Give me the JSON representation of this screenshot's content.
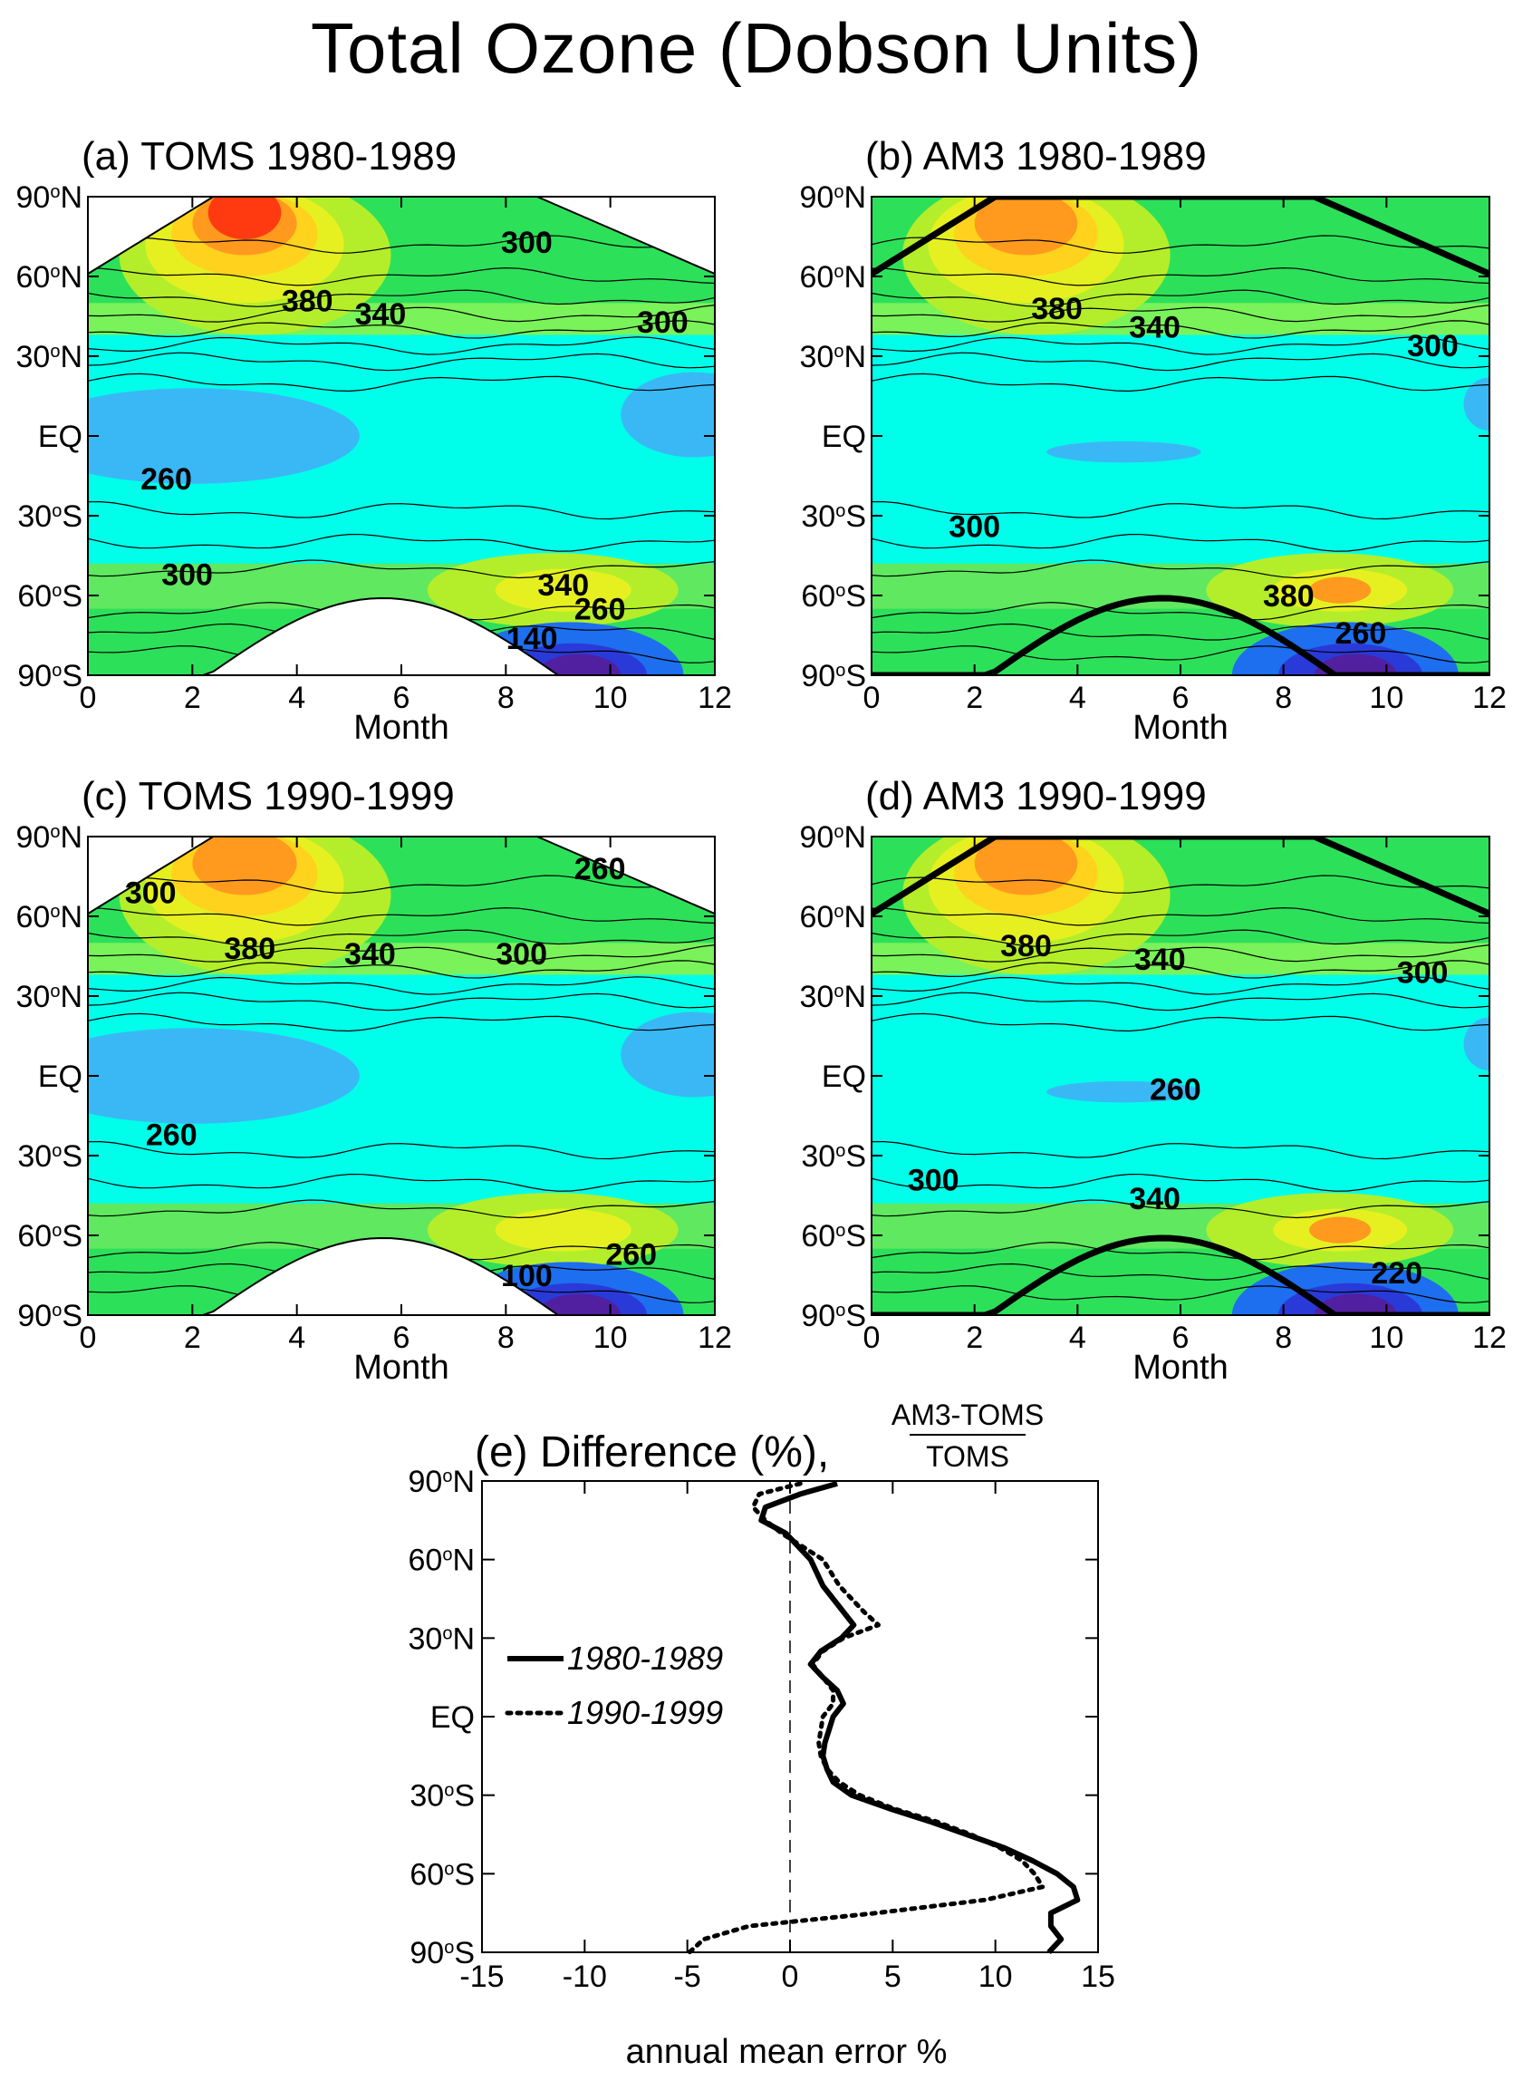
{
  "page": {
    "title": "Total Ozone  (Dobson Units)"
  },
  "chart_data": [
    {
      "type": "heatmap",
      "panel": "(a)",
      "title": "TOMS 1980-1989",
      "xlabel": "Month",
      "x_ticks": [
        "0",
        "2",
        "4",
        "6",
        "8",
        "10",
        "12"
      ],
      "y_ticks": [
        "90°N",
        "60°N",
        "30°N",
        "EQ",
        "30°S",
        "60°S",
        "90°S"
      ],
      "xlim": [
        0,
        12
      ],
      "ylim": [
        -90,
        90
      ],
      "colors": {
        "blue": "#1e90ff",
        "cyan": "#00ffea",
        "green": "#2de05a",
        "yellow": "#e6f020",
        "orange": "#ff9a1e",
        "red": "#ff3a10"
      },
      "contour_labels": [
        {
          "text": "300",
          "month": 8.4,
          "lat": 72
        },
        {
          "text": "380",
          "month": 4.2,
          "lat": 50
        },
        {
          "text": "340",
          "month": 5.6,
          "lat": 45
        },
        {
          "text": "300",
          "month": 11.0,
          "lat": 42
        },
        {
          "text": "260",
          "month": 1.5,
          "lat": -17
        },
        {
          "text": "300",
          "month": 1.9,
          "lat": -53
        },
        {
          "text": "340",
          "month": 9.1,
          "lat": -57
        },
        {
          "text": "260",
          "month": 9.8,
          "lat": -66
        },
        {
          "text": "140",
          "month": 8.5,
          "lat": -77
        }
      ]
    },
    {
      "type": "heatmap",
      "panel": "(b)",
      "title": "AM3 1980-1989",
      "xlabel": "Month",
      "x_ticks": [
        "0",
        "2",
        "4",
        "6",
        "8",
        "10",
        "12"
      ],
      "y_ticks": [
        "90°N",
        "60°N",
        "30°N",
        "EQ",
        "30°S",
        "60°S",
        "90°S"
      ],
      "xlim": [
        0,
        12
      ],
      "ylim": [
        -90,
        90
      ],
      "contour_labels": [
        {
          "text": "380",
          "month": 3.6,
          "lat": 47
        },
        {
          "text": "340",
          "month": 5.5,
          "lat": 40
        },
        {
          "text": "300",
          "month": 10.9,
          "lat": 33
        },
        {
          "text": "300",
          "month": 2.0,
          "lat": -35
        },
        {
          "text": "380",
          "month": 8.1,
          "lat": -61
        },
        {
          "text": "260",
          "month": 9.5,
          "lat": -75
        }
      ]
    },
    {
      "type": "heatmap",
      "panel": "(c)",
      "title": "TOMS 1990-1999",
      "xlabel": "Month",
      "x_ticks": [
        "0",
        "2",
        "4",
        "6",
        "8",
        "10",
        "12"
      ],
      "y_ticks": [
        "90°N",
        "60°N",
        "30°N",
        "EQ",
        "30°S",
        "60°S",
        "90°S"
      ],
      "xlim": [
        0,
        12
      ],
      "ylim": [
        -90,
        90
      ],
      "contour_labels": [
        {
          "text": "300",
          "month": 1.2,
          "lat": 68
        },
        {
          "text": "380",
          "month": 3.1,
          "lat": 47
        },
        {
          "text": "340",
          "month": 5.4,
          "lat": 45
        },
        {
          "text": "300",
          "month": 8.3,
          "lat": 45
        },
        {
          "text": "260",
          "month": 9.8,
          "lat": 77
        },
        {
          "text": "260",
          "month": 1.6,
          "lat": -23
        },
        {
          "text": "260",
          "month": 10.4,
          "lat": -68
        },
        {
          "text": "100",
          "month": 8.4,
          "lat": -76
        }
      ]
    },
    {
      "type": "heatmap",
      "panel": "(d)",
      "title": "AM3 1990-1999",
      "xlabel": "Month",
      "x_ticks": [
        "0",
        "2",
        "4",
        "6",
        "8",
        "10",
        "12"
      ],
      "y_ticks": [
        "90°N",
        "60°N",
        "30°N",
        "EQ",
        "30°S",
        "60°S",
        "90°S"
      ],
      "xlim": [
        0,
        12
      ],
      "ylim": [
        -90,
        90
      ],
      "contour_labels": [
        {
          "text": "380",
          "month": 3.0,
          "lat": 48
        },
        {
          "text": "340",
          "month": 5.6,
          "lat": 43
        },
        {
          "text": "300",
          "month": 10.7,
          "lat": 38
        },
        {
          "text": "260",
          "month": 5.9,
          "lat": -6
        },
        {
          "text": "300",
          "month": 1.2,
          "lat": -40
        },
        {
          "text": "340",
          "month": 5.5,
          "lat": -47
        },
        {
          "text": "220",
          "month": 10.2,
          "lat": -75
        }
      ]
    },
    {
      "type": "line",
      "panel": "(e)",
      "title": "Difference (%),",
      "formula": {
        "numerator": "AM3-TOMS",
        "denominator": "TOMS"
      },
      "xlabel": "annual mean error %",
      "xlim": [
        -15,
        15
      ],
      "ylim": [
        -90,
        90
      ],
      "x_ticks": [
        "-15",
        "-10",
        "-5",
        "0",
        "5",
        "10",
        "15"
      ],
      "y_ticks": [
        "90°N",
        "60°N",
        "30°N",
        "EQ",
        "30°S",
        "60°S",
        "90°S"
      ],
      "legend_position": "center-left",
      "series": [
        {
          "name": "1980-1989",
          "style": "solid",
          "lat": [
            89,
            85,
            80,
            75,
            70,
            60,
            50,
            40,
            35,
            30,
            25,
            20,
            15,
            10,
            5,
            0,
            -5,
            -10,
            -15,
            -20,
            -25,
            -30,
            -35,
            -40,
            -45,
            -50,
            -55,
            -60,
            -65,
            -70,
            -75,
            -80,
            -85,
            -90
          ],
          "values": [
            2.3,
            0.5,
            -1.2,
            -1.4,
            -0.2,
            1.0,
            1.6,
            2.6,
            3.1,
            2.5,
            1.5,
            1.0,
            1.6,
            2.3,
            2.6,
            2.1,
            1.9,
            1.7,
            1.6,
            1.8,
            2.1,
            3.0,
            4.8,
            6.8,
            8.6,
            10.4,
            11.8,
            13.0,
            13.8,
            14.0,
            12.7,
            12.7,
            13.2,
            12.6
          ]
        },
        {
          "name": "1990-1999",
          "style": "dotted",
          "lat": [
            89,
            85,
            80,
            75,
            70,
            60,
            50,
            40,
            35,
            30,
            25,
            20,
            15,
            10,
            5,
            0,
            -5,
            -10,
            -15,
            -20,
            -25,
            -30,
            -35,
            -40,
            -45,
            -50,
            -55,
            -60,
            -65,
            -70,
            -75,
            -80,
            -85,
            -90
          ],
          "values": [
            0.5,
            -1.5,
            -1.8,
            -1.2,
            -0.4,
            1.6,
            2.4,
            3.6,
            4.3,
            2.6,
            1.6,
            1.1,
            1.6,
            2.1,
            2.1,
            1.6,
            1.5,
            1.4,
            1.5,
            1.8,
            2.4,
            3.4,
            5.0,
            7.1,
            8.8,
            10.2,
            11.3,
            11.9,
            12.3,
            9.5,
            4.2,
            -2.0,
            -4.2,
            -4.9
          ]
        }
      ]
    }
  ]
}
